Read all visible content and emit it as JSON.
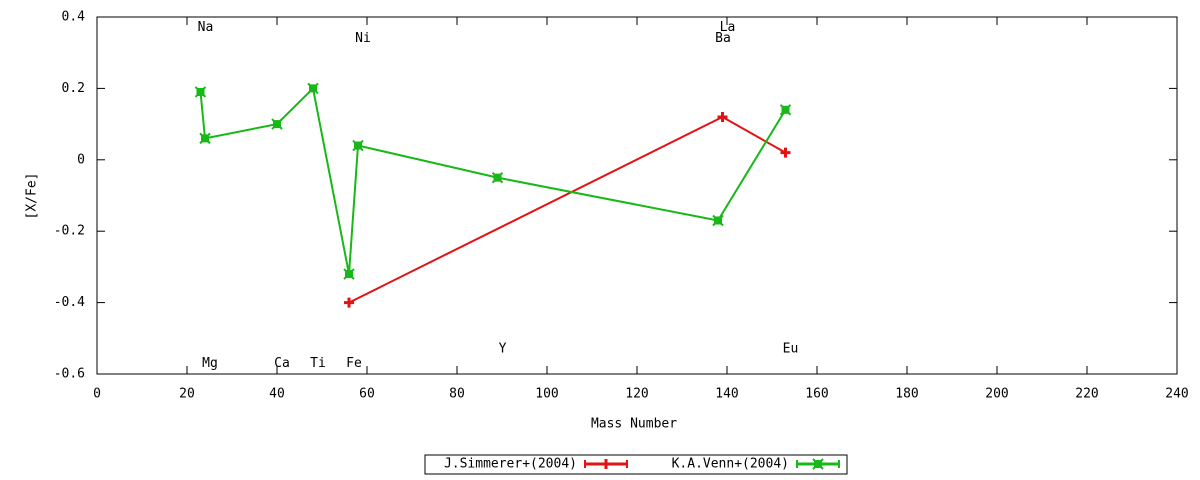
{
  "chart_data": {
    "type": "line",
    "xlabel": "Mass Number",
    "ylabel": "[X/Fe]",
    "xlim": [
      0,
      240
    ],
    "xticks": [
      0,
      20,
      40,
      60,
      80,
      100,
      120,
      140,
      160,
      180,
      200,
      220,
      240
    ],
    "ylim": [
      -0.6,
      0.4
    ],
    "yticks": [
      0.4,
      0.2,
      0,
      -0.2,
      -0.4,
      -0.6
    ],
    "legend": "bottom",
    "series": [
      {
        "name": "J.Simmerer+(2004)",
        "color": "#e41212",
        "marker": "plus",
        "x": [
          56,
          139,
          153
        ],
        "values": [
          -0.4,
          0.12,
          0.02
        ]
      },
      {
        "name": "K.A.Venn+(2004)",
        "color": "#18b818",
        "marker": "box",
        "x": [
          23,
          24,
          40,
          48,
          56,
          58,
          89,
          138,
          153
        ],
        "values": [
          0.19,
          0.06,
          0.1,
          0.2,
          -0.32,
          0.04,
          -0.05,
          -0.17,
          0.14
        ]
      }
    ],
    "annotations": [
      {
        "text": "Na",
        "x": 23,
        "y": 0.37
      },
      {
        "text": "Ni",
        "x": 58,
        "y": 0.34
      },
      {
        "text": "La",
        "x": 139,
        "y": 0.37
      },
      {
        "text": "Ba",
        "x": 138,
        "y": 0.34
      },
      {
        "text": "Mg",
        "x": 24,
        "y": -0.57
      },
      {
        "text": "Ca",
        "x": 40,
        "y": -0.57
      },
      {
        "text": "Ti",
        "x": 48,
        "y": -0.57
      },
      {
        "text": "Fe",
        "x": 56,
        "y": -0.57
      },
      {
        "text": "Y",
        "x": 89,
        "y": -0.53
      },
      {
        "text": "Eu",
        "x": 153,
        "y": -0.53
      }
    ]
  }
}
